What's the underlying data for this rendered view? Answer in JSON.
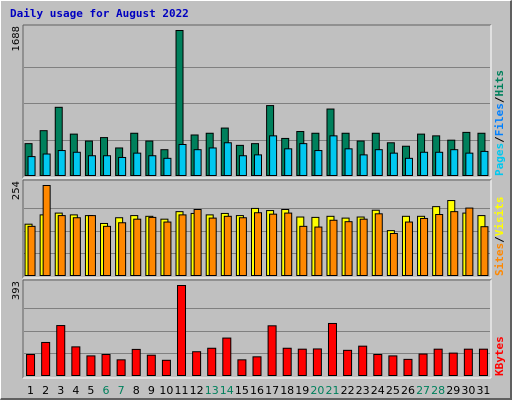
{
  "chart_data": {
    "type": "bar",
    "title": "Daily usage for August 2022",
    "categories": [
      "1",
      "2",
      "3",
      "4",
      "5",
      "6",
      "7",
      "8",
      "9",
      "10",
      "11",
      "12",
      "13",
      "14",
      "15",
      "16",
      "17",
      "18",
      "19",
      "20",
      "21",
      "22",
      "23",
      "24",
      "25",
      "26",
      "27",
      "28",
      "29",
      "30",
      "31"
    ],
    "weekend_days": [
      "6",
      "7",
      "13",
      "14",
      "20",
      "21",
      "27",
      "28"
    ],
    "panels": [
      {
        "name": "requests",
        "ymax_label": "1688",
        "ylim": [
          0,
          1688
        ],
        "legend": [
          "Pages",
          "Files",
          "Hits"
        ],
        "series": [
          {
            "name": "Hits",
            "color": "#00805c",
            "values": [
              380,
              530,
              800,
              490,
              410,
              450,
              330,
              500,
              410,
              310,
              1688,
              480,
              500,
              560,
              360,
              380,
              820,
              440,
              520,
              500,
              780,
              500,
              410,
              500,
              390,
              350,
              490,
              470,
              420,
              510,
              500
            ]
          },
          {
            "name": "Files",
            "color": "#00c8f0",
            "values": [
              230,
              260,
              300,
              280,
              240,
              240,
              220,
              270,
              240,
              210,
              370,
              310,
              330,
              390,
              240,
              250,
              470,
              320,
              380,
              300,
              470,
              320,
              250,
              310,
              270,
              210,
              280,
              280,
              310,
              270,
              290
            ]
          }
        ]
      },
      {
        "name": "visitors",
        "ymax_label": "254",
        "ylim": [
          0,
          254
        ],
        "legend": [
          "Sites",
          "Visits"
        ],
        "series": [
          {
            "name": "Visits",
            "color": "#ffff00",
            "values": [
              146,
              172,
              177,
              172,
              170,
              148,
              164,
              170,
              168,
              160,
              181,
              176,
              172,
              176,
              170,
              190,
              184,
              187,
              166,
              165,
              168,
              163,
              166,
              185,
              128,
              168,
              168,
              195,
              212,
              177,
              170
            ]
          },
          {
            "name": "Sites",
            "color": "#ff8800",
            "values": [
              140,
              254,
              170,
              164,
              170,
              140,
              150,
              160,
              165,
              152,
              172,
              187,
              163,
              168,
              164,
              178,
              174,
              177,
              140,
              138,
              157,
              153,
              160,
              175,
              120,
              152,
              162,
              173,
              181,
              191,
              139
            ]
          }
        ]
      },
      {
        "name": "volume",
        "ymax_label": "393",
        "ylim": [
          0,
          393
        ],
        "legend": [
          "KBytes"
        ],
        "series": [
          {
            "name": "KBytes",
            "color": "#ff0000",
            "values": [
              95,
              147,
              220,
              128,
              89,
              95,
              72,
              117,
              92,
              70,
              393,
              107,
              122,
              166,
              72,
              85,
              219,
              122,
              118,
              119,
              229,
              113,
              131,
              95,
              89,
              74,
              97,
              118,
              101,
              118,
              118
            ]
          }
        ]
      }
    ],
    "colors": {
      "bg": "#c0c0c0",
      "title": "#0000c0",
      "pages": "#00c8f0",
      "files": "#0080ff",
      "hits": "#00805c",
      "sites": "#ff8800",
      "visits": "#ffff00",
      "kbytes": "#ff0000",
      "weekday": "#000000",
      "weekend": "#00805c"
    }
  }
}
